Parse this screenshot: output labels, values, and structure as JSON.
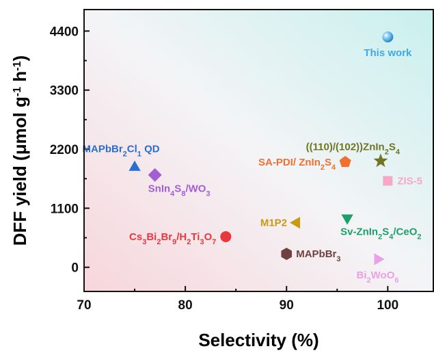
{
  "chart_data": {
    "type": "scatter",
    "xlabel": "Selectivity (%)",
    "ylabel_parts": [
      {
        "t": "DFF yield (μmol g"
      },
      {
        "t": "-1",
        "sup": true
      },
      {
        "t": " h"
      },
      {
        "t": "-1",
        "sup": true
      },
      {
        "t": ")"
      }
    ],
    "xlim": [
      70,
      104.5
    ],
    "ylim": [
      -450,
      4800
    ],
    "xticks": [
      70,
      80,
      90,
      100
    ],
    "yticks": [
      0,
      1100,
      2200,
      3300,
      4400
    ],
    "x_minor_step": 5,
    "y_minor_step": 550,
    "grid": false,
    "background": "diagonal-gradient",
    "points": [
      {
        "key": "this-work",
        "x": 100,
        "y": 4290,
        "shape": "sphere",
        "color": "#3fa9e8",
        "label_parts": [
          {
            "t": "This work"
          }
        ],
        "label_pos": "below"
      },
      {
        "key": "zis-sa",
        "x": 99.3,
        "y": 1980,
        "shape": "star",
        "color": "#6f7520",
        "label_parts": [
          {
            "t": "((110)/(102))ZnIn"
          },
          {
            "t": "2",
            "sub": true
          },
          {
            "t": "S"
          },
          {
            "t": "4",
            "sub": true
          }
        ],
        "label_pos": "above-left"
      },
      {
        "key": "sa-pdi",
        "x": 95.8,
        "y": 1960,
        "shape": "pentagon",
        "color": "#f07030",
        "label_parts": [
          {
            "t": "SA-PDI/ ZnIn"
          },
          {
            "t": "2",
            "sub": true
          },
          {
            "t": "S"
          },
          {
            "t": "4",
            "sub": true
          }
        ],
        "label_pos": "left"
      },
      {
        "key": "zis-5",
        "x": 100,
        "y": 1610,
        "shape": "square",
        "color": "#f6a8c8",
        "label_parts": [
          {
            "t": "ZIS-5"
          }
        ],
        "label_pos": "right"
      },
      {
        "key": "mapbbrcl",
        "x": 75,
        "y": 1860,
        "shape": "triangle-up",
        "color": "#2a6fd0",
        "label_parts": [
          {
            "t": "MAPbBr"
          },
          {
            "t": "2",
            "sub": true
          },
          {
            "t": "Cl"
          },
          {
            "t": "1",
            "sub": true
          },
          {
            "t": " QD"
          }
        ],
        "label_pos": "above-center"
      },
      {
        "key": "snin4s8",
        "x": 77,
        "y": 1720,
        "shape": "diamond",
        "color": "#a35fd2",
        "label_parts": [
          {
            "t": "SnIn"
          },
          {
            "t": "4",
            "sub": true
          },
          {
            "t": "S"
          },
          {
            "t": "8",
            "sub": true
          },
          {
            "t": "/WO"
          },
          {
            "t": "3",
            "sub": true
          }
        ],
        "label_pos": "below-right"
      },
      {
        "key": "m1p2",
        "x": 91,
        "y": 830,
        "shape": "triangle-left",
        "color": "#c79a10",
        "label_parts": [
          {
            "t": "M1P2"
          }
        ],
        "label_pos": "left"
      },
      {
        "key": "sv-zis",
        "x": 96,
        "y": 920,
        "shape": "triangle-down",
        "color": "#1e9e6a",
        "label_parts": [
          {
            "t": "Sv-ZnIn"
          },
          {
            "t": "2",
            "sub": true
          },
          {
            "t": "S"
          },
          {
            "t": "4",
            "sub": true
          },
          {
            "t": "/CeO"
          },
          {
            "t": "2",
            "sub": true
          }
        ],
        "label_pos": "below-right"
      },
      {
        "key": "cs3bi2br9",
        "x": 84,
        "y": 570,
        "shape": "circle",
        "color": "#e8383c",
        "label_parts": [
          {
            "t": "Cs"
          },
          {
            "t": "3",
            "sub": true
          },
          {
            "t": "Bi"
          },
          {
            "t": "2",
            "sub": true
          },
          {
            "t": "Br"
          },
          {
            "t": "9",
            "sub": true
          },
          {
            "t": "/H"
          },
          {
            "t": "2",
            "sub": true
          },
          {
            "t": "Ti"
          },
          {
            "t": "3",
            "sub": true
          },
          {
            "t": "O"
          },
          {
            "t": "7",
            "sub": true
          }
        ],
        "label_pos": "left"
      },
      {
        "key": "mapbbr3",
        "x": 90,
        "y": 250,
        "shape": "hexagon",
        "color": "#6e4040",
        "label_parts": [
          {
            "t": "MAPbBr"
          },
          {
            "t": "3",
            "sub": true
          }
        ],
        "label_pos": "right"
      },
      {
        "key": "bi2wo6",
        "x": 99,
        "y": 150,
        "shape": "triangle-right",
        "color": "#e8a0e8",
        "label_parts": [
          {
            "t": "Bi"
          },
          {
            "t": "2",
            "sub": true
          },
          {
            "t": "WoO"
          },
          {
            "t": "6",
            "sub": true
          }
        ],
        "label_pos": "below"
      }
    ]
  }
}
